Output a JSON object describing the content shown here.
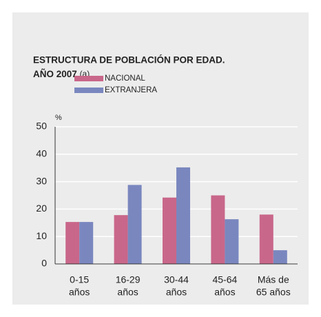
{
  "chart_data": {
    "type": "bar",
    "title": [
      "ESTRUCTURA DE POBLACIÓN POR EDAD.",
      "AÑO 2007"
    ],
    "title_note": "(a)",
    "y_label": "%",
    "categories": [
      [
        "0-15",
        "años"
      ],
      [
        "16-29",
        "años"
      ],
      [
        "30-44",
        "años"
      ],
      [
        "45-64",
        "años"
      ],
      [
        "Más de",
        "65 años"
      ]
    ],
    "series": [
      {
        "name": "NACIONAL",
        "color": "#c9678a",
        "values": [
          15.3,
          17.8,
          24.2,
          25,
          18
        ]
      },
      {
        "name": "EXTRANJERA",
        "color": "#7a87bf",
        "values": [
          15.3,
          28.8,
          35.2,
          16.3,
          5
        ]
      }
    ],
    "ylim": [
      0,
      50
    ],
    "yticks": [
      0,
      10,
      20,
      30,
      40,
      50
    ],
    "grid": true
  }
}
